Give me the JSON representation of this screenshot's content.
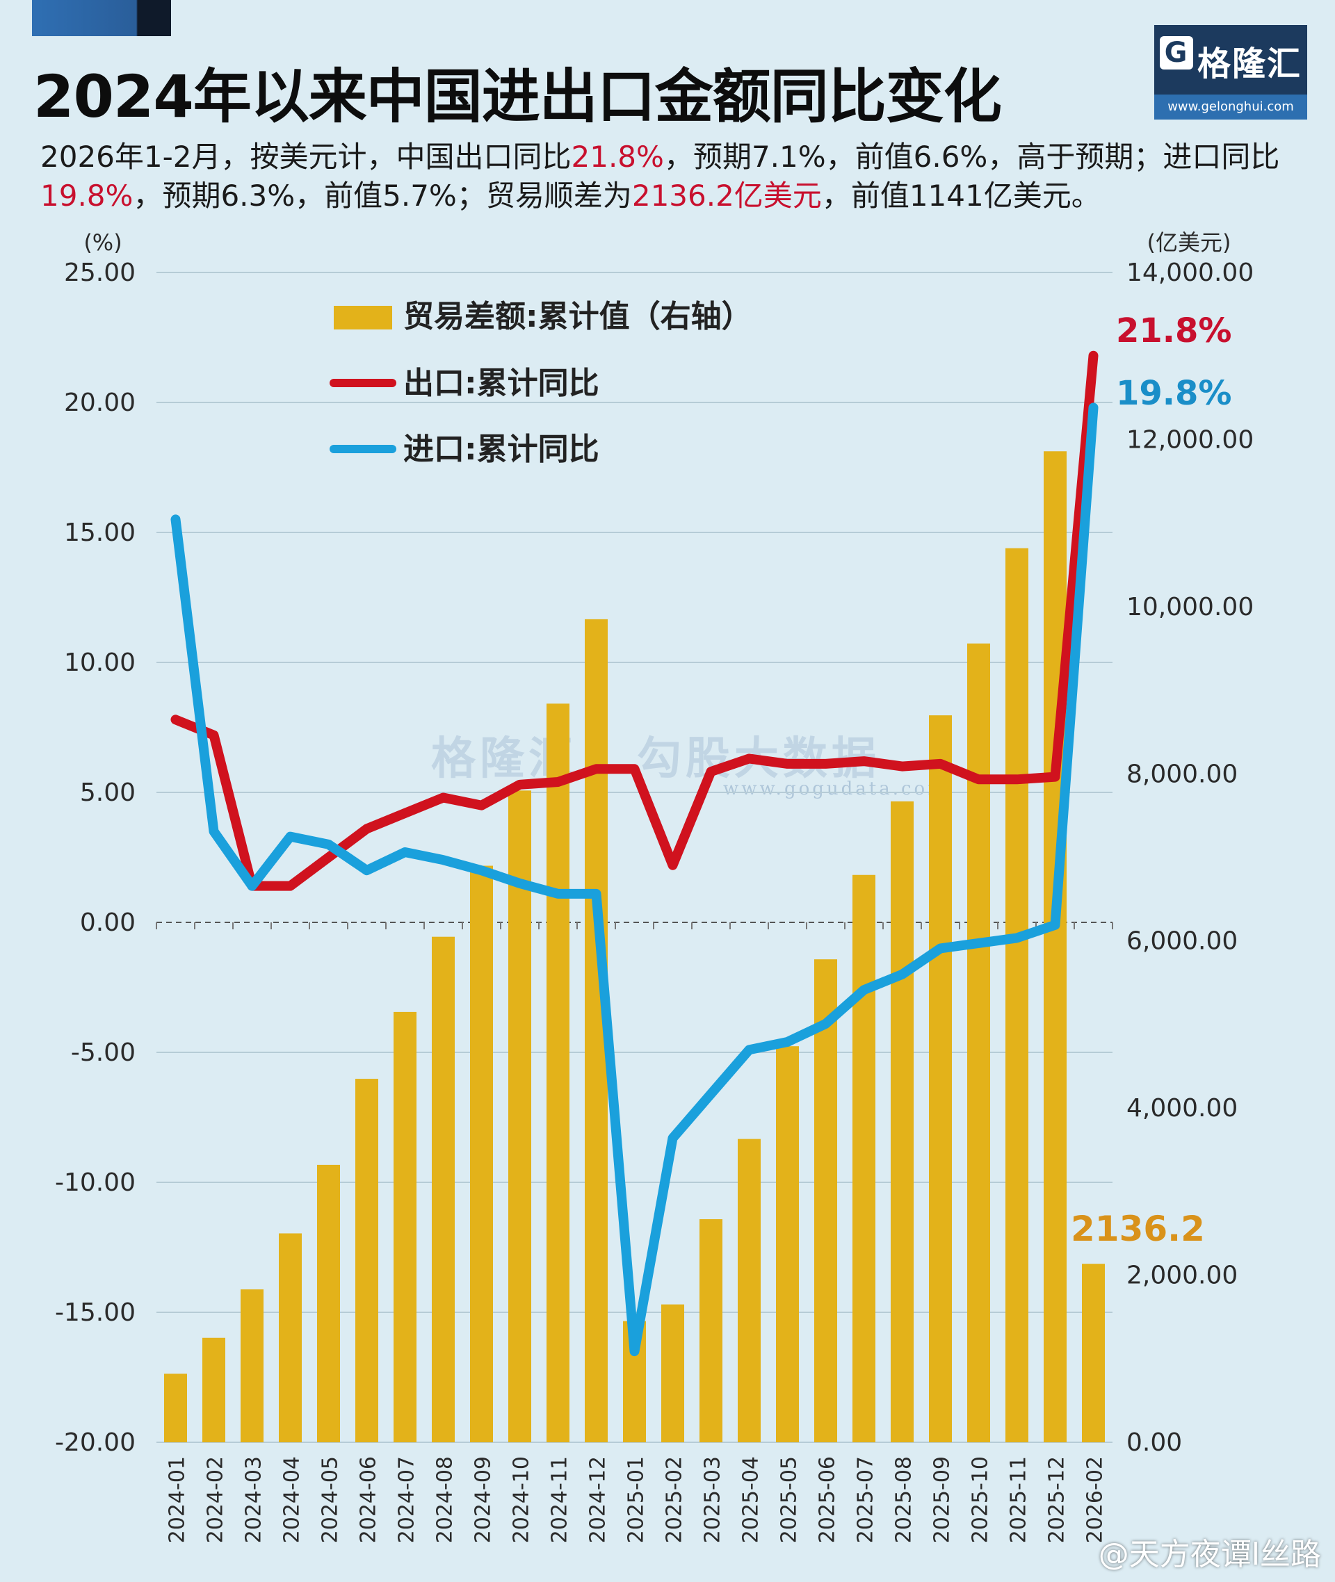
{
  "title": "2024年以来中国进出口金额同比变化",
  "logo": {
    "brand": "格隆汇",
    "glyph": "G",
    "url": "www.gelonghui.com"
  },
  "summary": {
    "p1": "2026年1-2月，按美元计，中国出口同比",
    "h1": "21.8%",
    "p2": "，预期7.1%，前值6.6%，高于预期；进口同比",
    "h2": "19.8%",
    "p3": "，预期6.3%，前值5.7%；贸易顺差为",
    "h3": "2136.2亿美元",
    "p4": "，前值1141亿美元。"
  },
  "watermark": {
    "text": "格隆汇 | 勾股大数据",
    "url": "www.gogudata.com"
  },
  "footer": {
    "credit": "@天方夜谭l丝路"
  },
  "colors": {
    "bar": "#e3b21a",
    "export": "#d0121e",
    "import": "#1aa0dc",
    "grid": "#b6ccd6",
    "text": "#2a2a2a"
  },
  "chart_data": {
    "type": "bar+line",
    "left_axis": {
      "label": "(%)",
      "min": -20,
      "max": 25,
      "ticks": [
        "25.00",
        "20.00",
        "15.00",
        "10.00",
        "5.00",
        "0.00",
        "-5.00",
        "-10.00",
        "-15.00",
        "-20.00"
      ],
      "tick_values": [
        25,
        20,
        15,
        10,
        5,
        0,
        -5,
        -10,
        -15,
        -20
      ]
    },
    "right_axis": {
      "label": "(亿美元)",
      "min": 0,
      "max": 14000,
      "ticks": [
        "14,000.00",
        "12,000.00",
        "10,000.00",
        "8,000.00",
        "6,000.00",
        "4,000.00",
        "2,000.00",
        "0.00"
      ],
      "tick_values": [
        14000,
        12000,
        10000,
        8000,
        6000,
        4000,
        2000,
        0
      ]
    },
    "categories": [
      "2024-01",
      "2024-02",
      "2024-03",
      "2024-04",
      "2024-05",
      "2024-06",
      "2024-07",
      "2024-08",
      "2024-09",
      "2024-10",
      "2024-11",
      "2024-12",
      "2025-01",
      "2025-02",
      "2025-03",
      "2025-04",
      "2025-05",
      "2025-06",
      "2025-07",
      "2025-08",
      "2025-09",
      "2025-10",
      "2025-11",
      "2025-12",
      "2026-02"
    ],
    "series": [
      {
        "name": "贸易差额:累计值（右轴）",
        "kind": "bar",
        "axis": "right",
        "values": [
          820,
          1250,
          1830,
          2500,
          3320,
          4350,
          5150,
          6050,
          6900,
          7800,
          8840,
          9850,
          1450,
          1650,
          2670,
          3630,
          4740,
          5780,
          6790,
          7670,
          8700,
          9560,
          10700,
          11860,
          2136.2
        ]
      },
      {
        "name": "出口:累计同比",
        "kind": "line",
        "axis": "left",
        "values": [
          7.8,
          7.2,
          1.4,
          1.4,
          2.5,
          3.6,
          4.2,
          4.8,
          4.5,
          5.3,
          5.4,
          5.9,
          5.9,
          2.2,
          5.8,
          6.3,
          6.1,
          6.1,
          6.2,
          6.0,
          6.1,
          5.5,
          5.5,
          5.6,
          21.8
        ]
      },
      {
        "name": "进口:累计同比",
        "kind": "line",
        "axis": "left",
        "values": [
          15.5,
          3.5,
          1.4,
          3.3,
          3.0,
          2.0,
          2.7,
          2.4,
          2.0,
          1.5,
          1.1,
          1.1,
          -16.5,
          -8.3,
          -6.6,
          -4.9,
          -4.6,
          -3.9,
          -2.6,
          -2.0,
          -1.0,
          -0.8,
          -0.6,
          -0.1,
          19.8
        ]
      }
    ],
    "end_labels": {
      "export": "21.8%",
      "import": "19.8%",
      "bar": "2136.2"
    }
  }
}
